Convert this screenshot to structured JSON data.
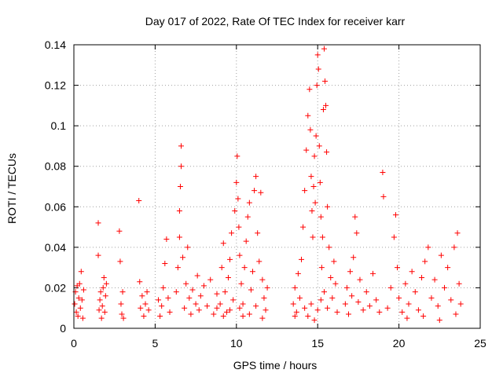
{
  "chart_data": {
    "type": "scatter",
    "title": "Day 017 of 2022, Rate Of TEC Index for receiver karr",
    "xlabel": "GPS time / hours",
    "ylabel": "ROTI / TECUs",
    "xlim": [
      0,
      25
    ],
    "ylim": [
      0,
      0.14
    ],
    "xticks": [
      0,
      5,
      10,
      15,
      20,
      25
    ],
    "xtick_labels": [
      "0",
      "5",
      "10",
      "15",
      "20",
      "25"
    ],
    "yticks": [
      0,
      0.02,
      0.04,
      0.06,
      0.08,
      0.1,
      0.12,
      0.14
    ],
    "ytick_labels": [
      "0",
      "0.02",
      "0.04",
      "0.06",
      "0.08",
      "0.1",
      "0.12",
      "0.14"
    ],
    "grid": true,
    "marker": "+",
    "color": "#ff0000",
    "series": [
      {
        "points": [
          [
            0.05,
            0.012
          ],
          [
            0.1,
            0.018
          ],
          [
            0.15,
            0.008
          ],
          [
            0.2,
            0.021
          ],
          [
            0.25,
            0.006
          ],
          [
            0.3,
            0.015
          ],
          [
            0.35,
            0.022
          ],
          [
            0.4,
            0.01
          ],
          [
            0.45,
            0.028
          ],
          [
            0.5,
            0.014
          ],
          [
            0.55,
            0.005
          ],
          [
            0.6,
            0.019
          ],
          [
            1.5,
            0.052
          ],
          [
            1.5,
            0.036
          ],
          [
            1.55,
            0.009
          ],
          [
            1.6,
            0.014
          ],
          [
            1.65,
            0.018
          ],
          [
            1.7,
            0.005
          ],
          [
            1.75,
            0.011
          ],
          [
            1.8,
            0.02
          ],
          [
            1.85,
            0.025
          ],
          [
            1.9,
            0.008
          ],
          [
            1.95,
            0.016
          ],
          [
            2.0,
            0.022
          ],
          [
            2.8,
            0.048
          ],
          [
            2.85,
            0.033
          ],
          [
            2.9,
            0.012
          ],
          [
            2.95,
            0.007
          ],
          [
            3.0,
            0.018
          ],
          [
            3.05,
            0.005
          ],
          [
            4.0,
            0.063
          ],
          [
            4.05,
            0.023
          ],
          [
            4.1,
            0.01
          ],
          [
            4.2,
            0.016
          ],
          [
            4.3,
            0.006
          ],
          [
            4.4,
            0.012
          ],
          [
            4.5,
            0.018
          ],
          [
            4.6,
            0.009
          ],
          [
            5.2,
            0.014
          ],
          [
            5.3,
            0.006
          ],
          [
            5.4,
            0.011
          ],
          [
            5.5,
            0.02
          ],
          [
            5.6,
            0.032
          ],
          [
            5.7,
            0.044
          ],
          [
            5.8,
            0.015
          ],
          [
            5.9,
            0.008
          ],
          [
            6.3,
            0.018
          ],
          [
            6.4,
            0.03
          ],
          [
            6.5,
            0.045
          ],
          [
            6.5,
            0.058
          ],
          [
            6.55,
            0.07
          ],
          [
            6.6,
            0.08
          ],
          [
            6.6,
            0.09
          ],
          [
            6.7,
            0.035
          ],
          [
            6.8,
            0.01
          ],
          [
            6.9,
            0.022
          ],
          [
            7.0,
            0.04
          ],
          [
            7.1,
            0.015
          ],
          [
            7.2,
            0.007
          ],
          [
            7.3,
            0.019
          ],
          [
            7.5,
            0.012
          ],
          [
            7.6,
            0.026
          ],
          [
            7.7,
            0.009
          ],
          [
            7.8,
            0.016
          ],
          [
            8.0,
            0.021
          ],
          [
            8.2,
            0.011
          ],
          [
            8.4,
            0.024
          ],
          [
            8.6,
            0.007
          ],
          [
            8.8,
            0.017
          ],
          [
            9.0,
            0.012
          ],
          [
            9.1,
            0.03
          ],
          [
            9.2,
            0.042
          ],
          [
            9.3,
            0.018
          ],
          [
            9.4,
            0.008
          ],
          [
            9.5,
            0.025
          ],
          [
            9.6,
            0.034
          ],
          [
            9.7,
            0.047
          ],
          [
            9.8,
            0.014
          ],
          [
            9.9,
            0.058
          ],
          [
            10.0,
            0.072
          ],
          [
            10.05,
            0.085
          ],
          [
            10.1,
            0.064
          ],
          [
            10.15,
            0.05
          ],
          [
            10.2,
            0.036
          ],
          [
            10.3,
            0.022
          ],
          [
            10.4,
            0.012
          ],
          [
            10.5,
            0.03
          ],
          [
            10.6,
            0.043
          ],
          [
            10.7,
            0.055
          ],
          [
            10.8,
            0.062
          ],
          [
            10.9,
            0.019
          ],
          [
            11.0,
            0.028
          ],
          [
            11.1,
            0.068
          ],
          [
            11.2,
            0.075
          ],
          [
            11.3,
            0.047
          ],
          [
            11.4,
            0.033
          ],
          [
            11.5,
            0.067
          ],
          [
            11.6,
            0.024
          ],
          [
            11.7,
            0.015
          ],
          [
            11.8,
            0.009
          ],
          [
            11.9,
            0.02
          ],
          [
            10.2,
            0.01
          ],
          [
            10.4,
            0.006
          ],
          [
            10.8,
            0.007
          ],
          [
            11.2,
            0.011
          ],
          [
            11.6,
            0.005
          ],
          [
            9.6,
            0.009
          ],
          [
            9.2,
            0.006
          ],
          [
            8.8,
            0.01
          ],
          [
            13.5,
            0.012
          ],
          [
            13.6,
            0.02
          ],
          [
            13.7,
            0.008
          ],
          [
            13.8,
            0.027
          ],
          [
            13.9,
            0.015
          ],
          [
            14.0,
            0.034
          ],
          [
            14.1,
            0.05
          ],
          [
            14.2,
            0.068
          ],
          [
            14.3,
            0.088
          ],
          [
            14.4,
            0.105
          ],
          [
            14.5,
            0.118
          ],
          [
            14.55,
            0.098
          ],
          [
            14.6,
            0.075
          ],
          [
            14.65,
            0.058
          ],
          [
            14.7,
            0.045
          ],
          [
            14.75,
            0.07
          ],
          [
            14.8,
            0.085
          ],
          [
            14.85,
            0.062
          ],
          [
            14.9,
            0.095
          ],
          [
            14.95,
            0.12
          ],
          [
            15.0,
            0.135
          ],
          [
            15.05,
            0.128
          ],
          [
            15.1,
            0.09
          ],
          [
            15.15,
            0.072
          ],
          [
            15.2,
            0.055
          ],
          [
            15.25,
            0.03
          ],
          [
            15.3,
            0.045
          ],
          [
            15.35,
            0.108
          ],
          [
            15.4,
            0.138
          ],
          [
            15.45,
            0.122
          ],
          [
            15.5,
            0.11
          ],
          [
            15.55,
            0.087
          ],
          [
            15.6,
            0.06
          ],
          [
            15.7,
            0.04
          ],
          [
            15.8,
            0.025
          ],
          [
            15.9,
            0.015
          ],
          [
            16.0,
            0.033
          ],
          [
            16.1,
            0.022
          ],
          [
            16.2,
            0.008
          ],
          [
            14.2,
            0.01
          ],
          [
            14.4,
            0.006
          ],
          [
            14.6,
            0.012
          ],
          [
            14.8,
            0.004
          ],
          [
            15.0,
            0.009
          ],
          [
            15.2,
            0.014
          ],
          [
            15.4,
            0.018
          ],
          [
            15.6,
            0.01
          ],
          [
            13.6,
            0.006
          ],
          [
            16.7,
            0.012
          ],
          [
            16.8,
            0.02
          ],
          [
            16.9,
            0.007
          ],
          [
            17.0,
            0.028
          ],
          [
            17.1,
            0.016
          ],
          [
            17.2,
            0.035
          ],
          [
            17.3,
            0.055
          ],
          [
            17.4,
            0.047
          ],
          [
            17.5,
            0.013
          ],
          [
            17.6,
            0.024
          ],
          [
            17.8,
            0.009
          ],
          [
            18.0,
            0.018
          ],
          [
            18.2,
            0.011
          ],
          [
            18.4,
            0.027
          ],
          [
            18.6,
            0.014
          ],
          [
            18.8,
            0.008
          ],
          [
            19.0,
            0.077
          ],
          [
            19.05,
            0.065
          ],
          [
            19.3,
            0.01
          ],
          [
            19.5,
            0.02
          ],
          [
            19.7,
            0.045
          ],
          [
            19.8,
            0.056
          ],
          [
            19.9,
            0.03
          ],
          [
            20.0,
            0.015
          ],
          [
            20.2,
            0.008
          ],
          [
            20.4,
            0.022
          ],
          [
            20.6,
            0.012
          ],
          [
            20.8,
            0.028
          ],
          [
            21.0,
            0.018
          ],
          [
            21.2,
            0.009
          ],
          [
            21.4,
            0.025
          ],
          [
            21.6,
            0.033
          ],
          [
            21.8,
            0.04
          ],
          [
            22.0,
            0.015
          ],
          [
            22.2,
            0.024
          ],
          [
            22.4,
            0.011
          ],
          [
            22.6,
            0.036
          ],
          [
            22.8,
            0.02
          ],
          [
            23.0,
            0.03
          ],
          [
            23.2,
            0.014
          ],
          [
            23.4,
            0.04
          ],
          [
            23.6,
            0.047
          ],
          [
            23.7,
            0.022
          ],
          [
            23.8,
            0.012
          ],
          [
            20.5,
            0.005
          ],
          [
            21.5,
            0.006
          ],
          [
            22.5,
            0.004
          ],
          [
            23.5,
            0.007
          ]
        ]
      }
    ]
  }
}
